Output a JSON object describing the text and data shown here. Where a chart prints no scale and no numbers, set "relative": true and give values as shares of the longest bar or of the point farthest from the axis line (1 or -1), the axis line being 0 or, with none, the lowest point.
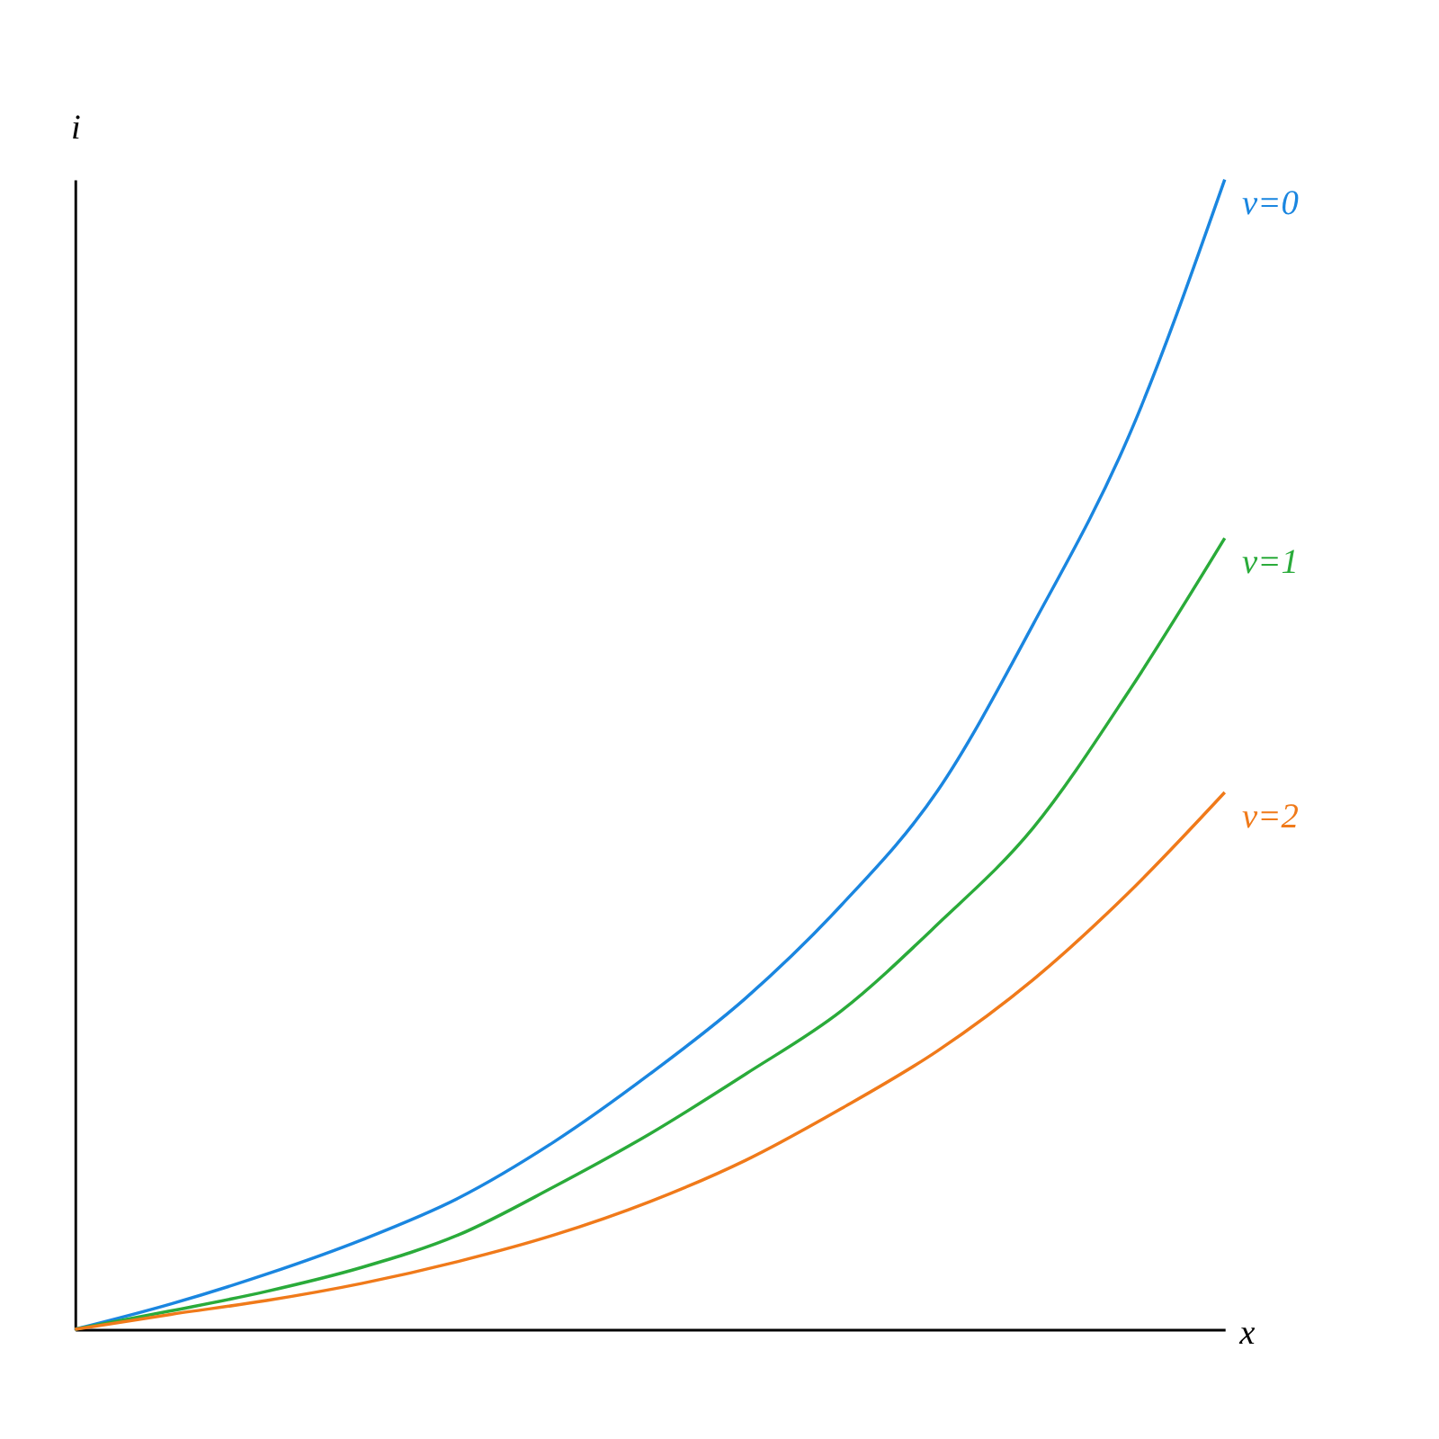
{
  "chart_data": {
    "type": "line",
    "relative": true,
    "xlabel": "x",
    "ylabel": "i",
    "marker": "none",
    "line_style": "solid",
    "categories": [
      null,
      null,
      null,
      null,
      null,
      null,
      null,
      null,
      null,
      null,
      null,
      null,
      null
    ],
    "series": [
      {
        "name": "v=0",
        "color": "#1a86e0",
        "values": [
          0,
          0.022,
          0.048,
          0.078,
          0.114,
          0.163,
          0.222,
          0.288,
          0.369,
          0.468,
          0.613,
          0.777,
          1.0
        ]
      },
      {
        "name": "v=1",
        "color": "#2aab3a",
        "values": [
          0,
          0.016,
          0.033,
          0.054,
          0.082,
          0.124,
          0.17,
          0.222,
          0.277,
          0.352,
          0.436,
          0.555,
          0.688
        ]
      },
      {
        "name": "v=2",
        "color": "#f07a1a",
        "values": [
          0,
          0.013,
          0.025,
          0.04,
          0.059,
          0.082,
          0.111,
          0.147,
          0.192,
          0.242,
          0.304,
          0.38,
          0.467
        ]
      }
    ]
  }
}
